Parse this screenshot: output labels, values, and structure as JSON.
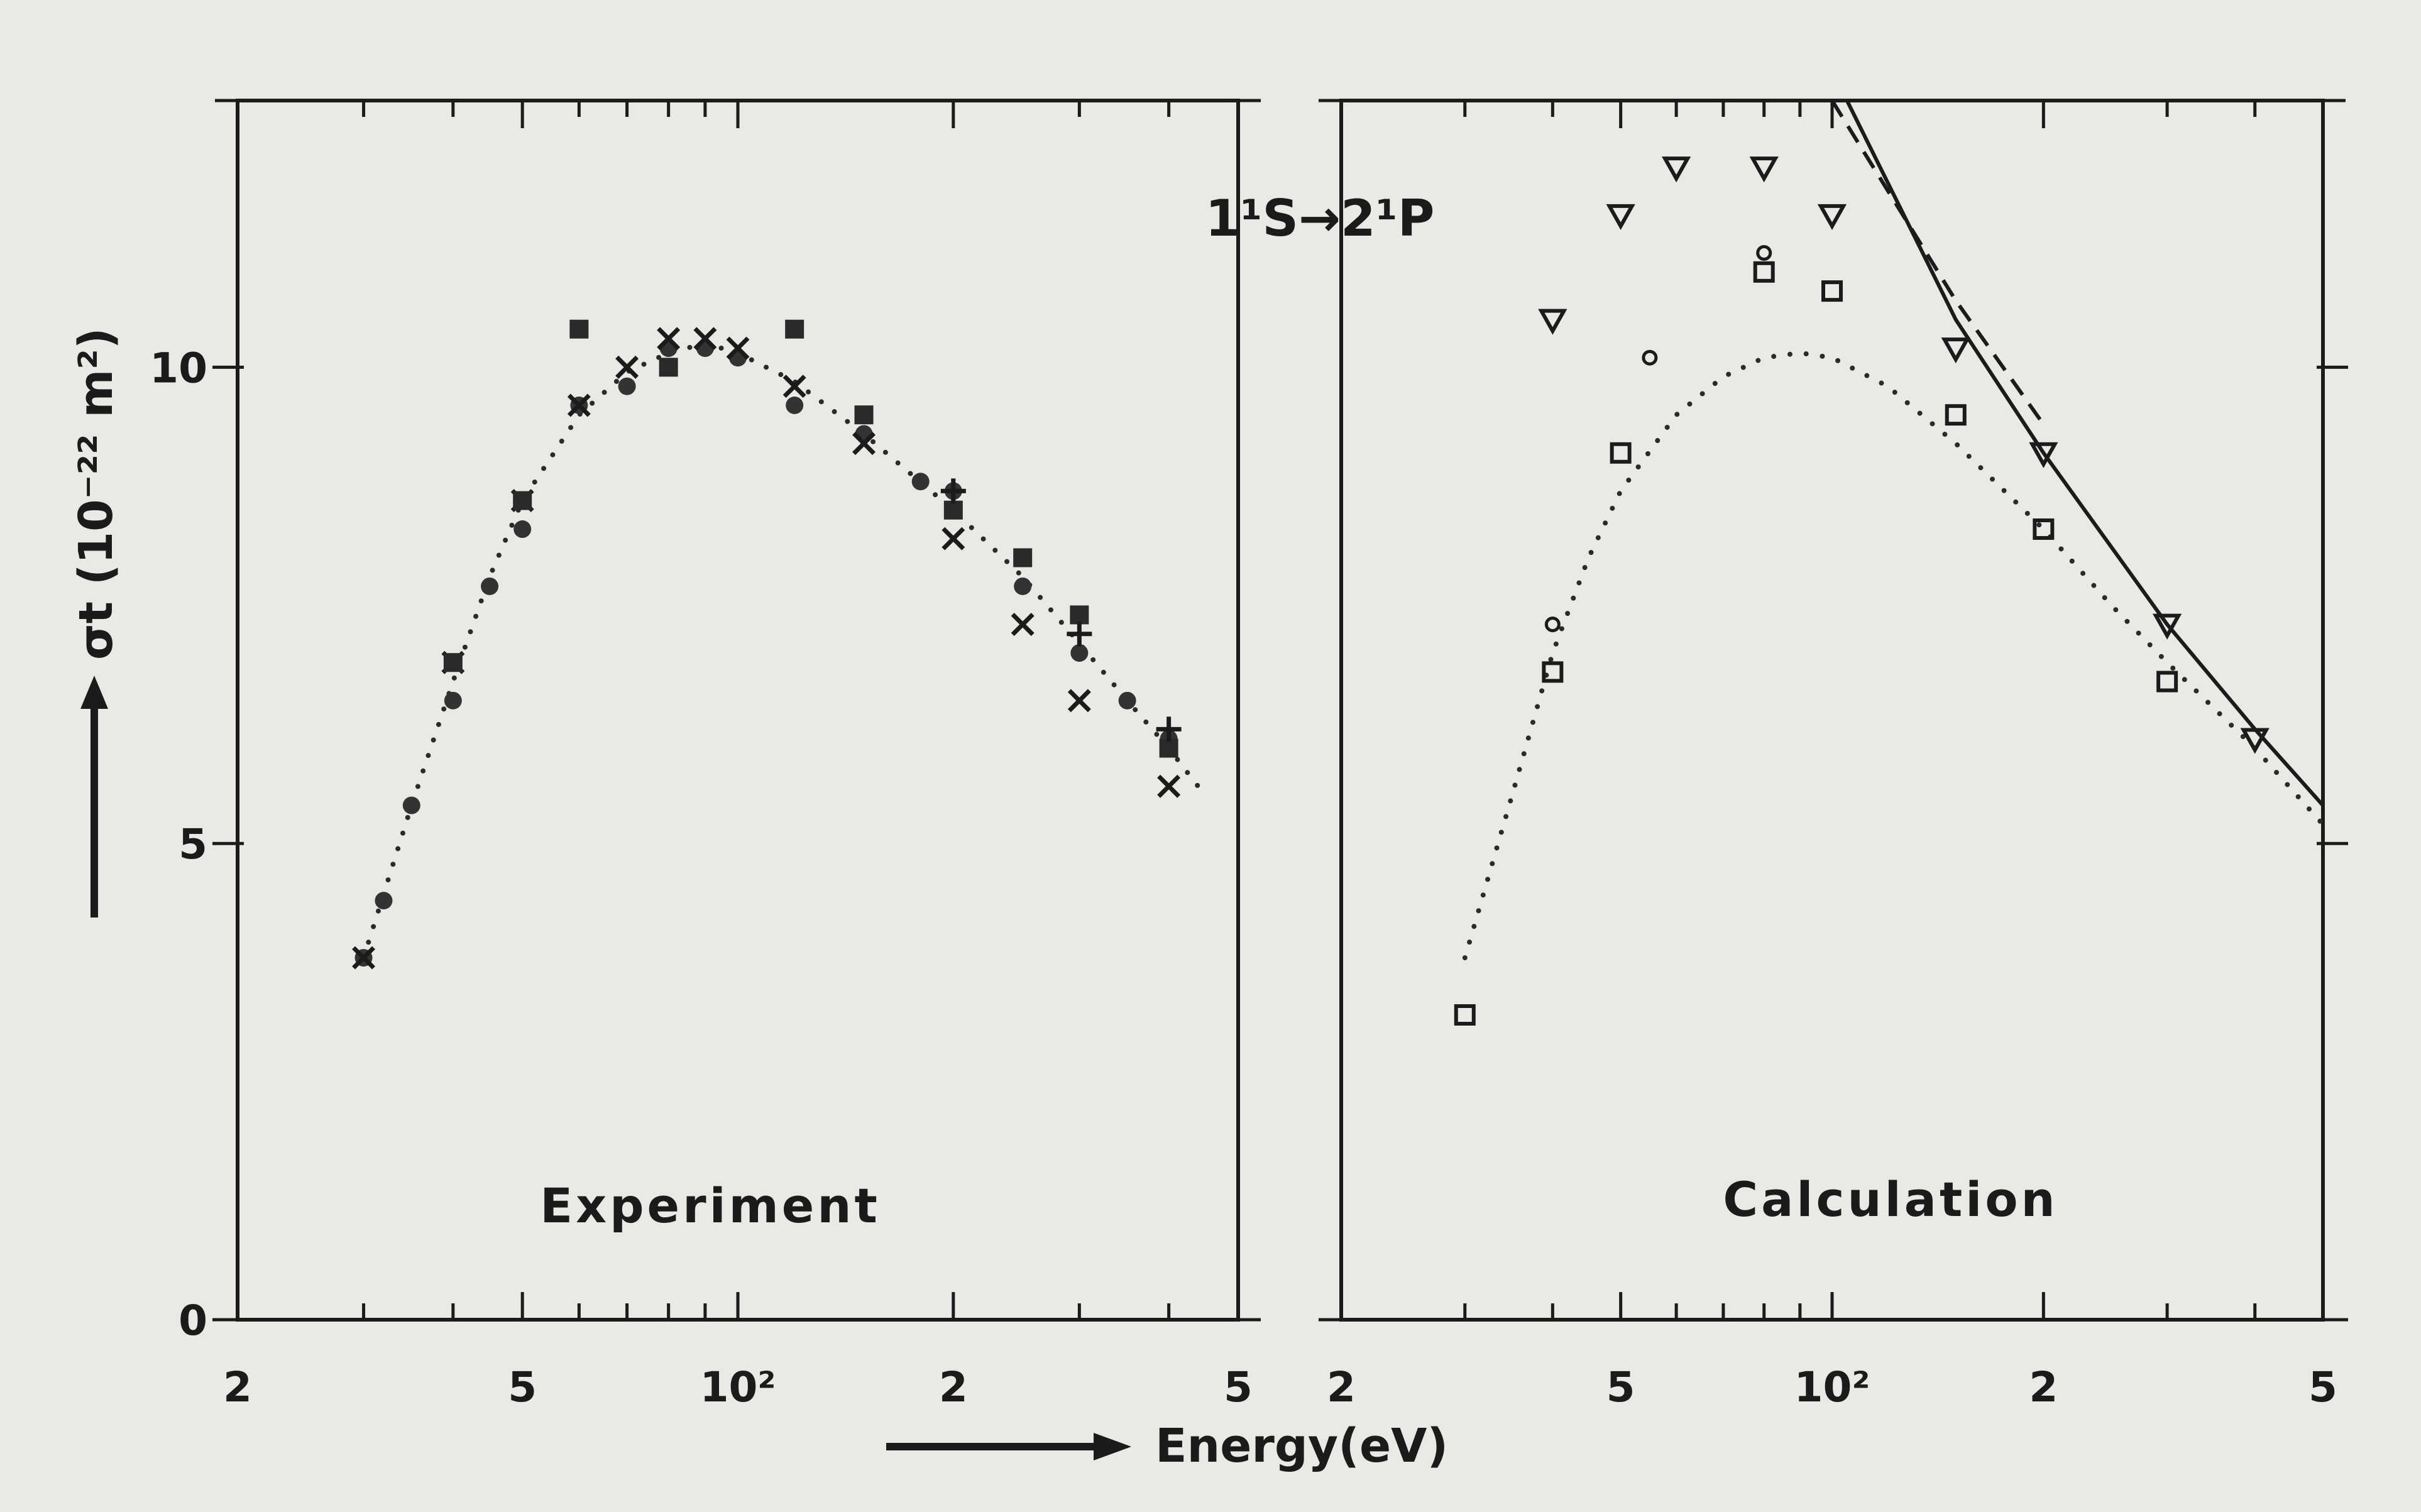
{
  "chart_data": [
    {
      "type": "scatter",
      "panel_label": "Experiment",
      "annotation": "1¹S→2¹P",
      "xlabel": "Energy(eV)",
      "ylabel": "σt (10⁻²² m²)",
      "x_scale": "log",
      "xlim": [
        20,
        500
      ],
      "ylim": [
        0,
        12.8
      ],
      "x_tick_labels": [
        "2",
        "5",
        "10²",
        "2",
        "5"
      ],
      "y_tick_labels": [
        "0",
        "5",
        "10"
      ],
      "series": [
        {
          "marker": "filled-circle",
          "points": [
            [
              30,
              3.8
            ],
            [
              32,
              4.4
            ],
            [
              35,
              5.4
            ],
            [
              40,
              6.5
            ],
            [
              45,
              7.7
            ],
            [
              50,
              8.3
            ],
            [
              60,
              9.6
            ],
            [
              70,
              9.8
            ],
            [
              80,
              10.2
            ],
            [
              90,
              10.2
            ],
            [
              100,
              10.1
            ],
            [
              120,
              9.6
            ],
            [
              150,
              9.3
            ],
            [
              180,
              8.8
            ],
            [
              200,
              8.7
            ],
            [
              250,
              7.7
            ],
            [
              300,
              7.0
            ],
            [
              350,
              6.5
            ],
            [
              400,
              6.1
            ]
          ]
        },
        {
          "marker": "cross",
          "points": [
            [
              30,
              3.8
            ],
            [
              40,
              6.9
            ],
            [
              50,
              8.6
            ],
            [
              60,
              9.6
            ],
            [
              70,
              10.0
            ],
            [
              80,
              10.3
            ],
            [
              90,
              10.3
            ],
            [
              100,
              10.2
            ],
            [
              120,
              9.8
            ],
            [
              150,
              9.2
            ],
            [
              200,
              8.2
            ],
            [
              250,
              7.3
            ],
            [
              300,
              6.5
            ],
            [
              400,
              5.6
            ]
          ]
        },
        {
          "marker": "filled-square",
          "points": [
            [
              40,
              6.9
            ],
            [
              50,
              8.6
            ],
            [
              60,
              10.4
            ],
            [
              80,
              10.0
            ],
            [
              120,
              10.4
            ],
            [
              150,
              9.5
            ],
            [
              200,
              8.5
            ],
            [
              250,
              8.0
            ],
            [
              300,
              7.4
            ],
            [
              400,
              6.0
            ]
          ]
        },
        {
          "marker": "plus",
          "points": [
            [
              200,
              8.7
            ],
            [
              300,
              7.2
            ],
            [
              400,
              6.2
            ]
          ]
        }
      ],
      "fit_curve": {
        "style": "dotted",
        "points": [
          [
            30,
            3.8
          ],
          [
            35,
            5.4
          ],
          [
            40,
            6.7
          ],
          [
            45,
            7.8
          ],
          [
            50,
            8.6
          ],
          [
            60,
            9.5
          ],
          [
            70,
            9.95
          ],
          [
            80,
            10.15
          ],
          [
            90,
            10.25
          ],
          [
            100,
            10.15
          ],
          [
            120,
            9.85
          ],
          [
            150,
            9.3
          ],
          [
            200,
            8.5
          ],
          [
            250,
            7.8
          ],
          [
            300,
            7.1
          ],
          [
            350,
            6.5
          ],
          [
            400,
            6.0
          ],
          [
            450,
            5.5
          ]
        ]
      }
    },
    {
      "type": "scatter",
      "panel_label": "Calculation",
      "x_scale": "log",
      "xlim": [
        20,
        500
      ],
      "ylim": [
        0,
        12.8
      ],
      "x_tick_labels": [
        "2",
        "5",
        "10²",
        "2",
        "5"
      ],
      "series": [
        {
          "marker": "open-triangle-down",
          "points": [
            [
              40,
              10.5
            ],
            [
              50,
              11.6
            ],
            [
              60,
              12.1
            ],
            [
              80,
              12.1
            ],
            [
              100,
              11.6
            ],
            [
              150,
              10.2
            ],
            [
              200,
              9.1
            ],
            [
              300,
              7.3
            ],
            [
              400,
              6.1
            ]
          ]
        },
        {
          "marker": "open-circle",
          "points": [
            [
              40,
              7.3
            ],
            [
              55,
              10.1
            ],
            [
              80,
              11.2
            ]
          ]
        },
        {
          "marker": "open-square",
          "points": [
            [
              30,
              3.2
            ],
            [
              40,
              6.8
            ],
            [
              50,
              9.1
            ],
            [
              80,
              11.0
            ],
            [
              100,
              10.8
            ],
            [
              150,
              9.5
            ],
            [
              200,
              8.3
            ],
            [
              300,
              6.7
            ]
          ]
        }
      ],
      "fit_curve": {
        "style": "dotted",
        "points": [
          [
            30,
            3.8
          ],
          [
            35,
            5.5
          ],
          [
            40,
            7.0
          ],
          [
            45,
            8.0
          ],
          [
            50,
            8.7
          ],
          [
            60,
            9.5
          ],
          [
            70,
            9.9
          ],
          [
            80,
            10.1
          ],
          [
            90,
            10.15
          ],
          [
            100,
            10.1
          ],
          [
            120,
            9.8
          ],
          [
            150,
            9.2
          ],
          [
            200,
            8.3
          ],
          [
            250,
            7.5
          ],
          [
            300,
            6.9
          ],
          [
            400,
            6.0
          ],
          [
            500,
            5.2
          ]
        ]
      },
      "solid_curve": {
        "style": "solid",
        "points": [
          [
            105,
            12.8
          ],
          [
            150,
            10.5
          ],
          [
            200,
            9.1
          ],
          [
            300,
            7.3
          ],
          [
            400,
            6.2
          ],
          [
            500,
            5.4
          ]
        ]
      },
      "dashed_curve": {
        "style": "dashed",
        "points": [
          [
            100,
            12.8
          ],
          [
            150,
            10.7
          ],
          [
            200,
            9.4
          ]
        ]
      }
    }
  ]
}
